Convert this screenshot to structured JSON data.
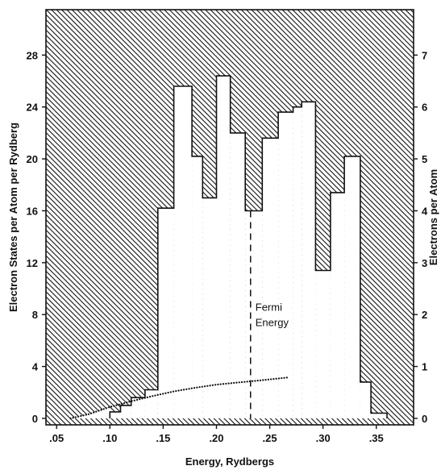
{
  "chart_data": {
    "type": "bar",
    "title": "",
    "xlabel": "Energy, Rydbergs",
    "ylabel": "Electron States per Atom per Rydberg",
    "y2label": "Electrons per Atom",
    "xlim": [
      0.04,
      0.385
    ],
    "ylim": [
      -0.5,
      31.5
    ],
    "y2lim": [
      -0.125,
      7.875
    ],
    "x_ticks": [
      ".05",
      ".10",
      ".15",
      ".20",
      ".25",
      ".30",
      ".35"
    ],
    "x_tick_values": [
      0.05,
      0.1,
      0.15,
      0.2,
      0.25,
      0.3,
      0.35
    ],
    "y_ticks": [
      "0",
      "4",
      "8",
      "12",
      "16",
      "20",
      "24",
      "28"
    ],
    "y_tick_values": [
      0,
      4,
      8,
      12,
      16,
      20,
      24,
      28
    ],
    "y2_ticks": [
      "0",
      "1",
      "2",
      "3",
      "4",
      "5",
      "6",
      "7"
    ],
    "y2_tick_values": [
      0,
      1,
      2,
      3,
      4,
      5,
      6,
      7
    ],
    "histogram": {
      "edges": [
        0.1,
        0.11,
        0.12,
        0.133,
        0.145,
        0.16,
        0.177,
        0.187,
        0.2,
        0.213,
        0.227,
        0.243,
        0.258,
        0.272,
        0.28,
        0.293,
        0.307,
        0.32,
        0.335,
        0.345,
        0.36
      ],
      "values": [
        0.5,
        1.0,
        1.6,
        2.2,
        16.2,
        25.6,
        20.2,
        17.0,
        26.4,
        22.0,
        16.0,
        21.6,
        23.6,
        24.0,
        24.4,
        11.4,
        17.4,
        20.2,
        2.8,
        0.4
      ]
    },
    "electron_count_curve": {
      "series_axis": "right",
      "x": [
        0.063,
        0.08,
        0.1,
        0.12,
        0.14,
        0.16,
        0.18,
        0.2,
        0.22,
        0.24,
        0.268
      ],
      "y": [
        0.0,
        0.08,
        0.22,
        0.33,
        0.43,
        0.52,
        0.59,
        0.65,
        0.69,
        0.73,
        0.79
      ]
    },
    "fermi_energy": {
      "x": 0.232,
      "label_line1": "Fermi",
      "label_line2": "Energy"
    },
    "colors": {
      "ink": "#111111",
      "background": "#ffffff"
    }
  }
}
